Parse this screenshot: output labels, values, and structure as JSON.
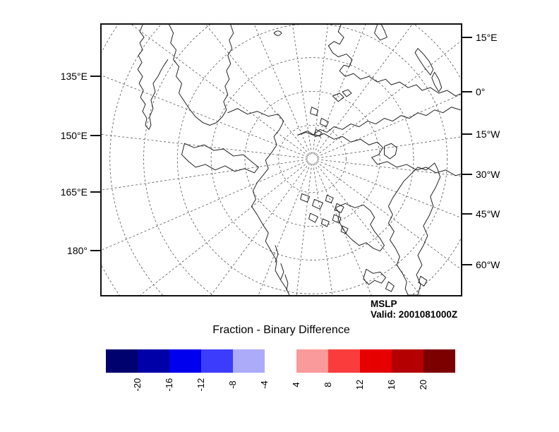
{
  "figure": {
    "title": "Fraction - Binary Difference",
    "annotation": {
      "line1": "MSLP",
      "line2": "Valid: 2001081000Z"
    }
  },
  "map": {
    "left_labels": [
      "135°E",
      "150°E",
      "165°E",
      "180°"
    ],
    "right_labels": [
      "15°E",
      "0°",
      "15°W",
      "30°W",
      "45°W",
      "60°W"
    ]
  },
  "colorbar": {
    "negative": {
      "labels": [
        "-20",
        "-16",
        "-12",
        "-8",
        "-4"
      ],
      "colors": [
        "#00006E",
        "#0000A8",
        "#0000EE",
        "#3C3CFC",
        "#ABABFA"
      ]
    },
    "positive": {
      "labels": [
        "4",
        "8",
        "12",
        "16",
        "20"
      ],
      "colors": [
        "#FA9A9A",
        "#FA3C3C",
        "#E60000",
        "#B40000",
        "#7D0000"
      ]
    }
  },
  "chart_data": {
    "type": "heatmap",
    "title": "Fraction - Binary Difference",
    "variable": "MSLP",
    "valid_time": "2001081000Z",
    "projection": "north polar stereographic map with dashed graticule (meridians every 15°) and coastlines; no shaded difference cells visible on the map",
    "colorbar": {
      "bin_edge_labels": [
        -20,
        -16,
        -12,
        -8,
        -4,
        4,
        8,
        12,
        16,
        20
      ],
      "negative_colors": [
        "#00006E",
        "#0000A8",
        "#0000EE",
        "#3C3CFC",
        "#ABABFA"
      ],
      "positive_colors": [
        "#FA9A9A",
        "#FA3C3C",
        "#E60000",
        "#B40000",
        "#7D0000"
      ],
      "gap_between_halves": "values between -4 and 4 unshaded"
    },
    "longitude_ticks_left": [
      "135°E",
      "150°E",
      "165°E",
      "180°"
    ],
    "longitude_ticks_right": [
      "15°E",
      "0°",
      "15°W",
      "30°W",
      "45°W",
      "60°W"
    ],
    "grid": "dashed"
  }
}
